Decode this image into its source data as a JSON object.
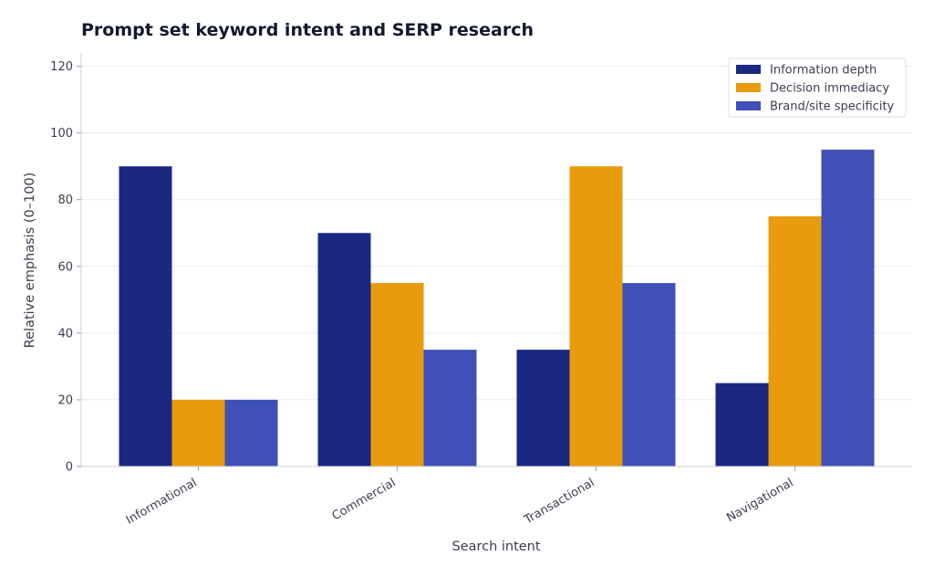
{
  "chart_data": {
    "type": "bar",
    "title": "Prompt set keyword intent and SERP research",
    "xlabel": "Search intent",
    "ylabel": "Relative emphasis (0–100)",
    "categories": [
      "Informational",
      "Commercial",
      "Transactional",
      "Navigational"
    ],
    "series": [
      {
        "name": "Information depth",
        "color": "#1a2882",
        "values": [
          90,
          70,
          35,
          25
        ]
      },
      {
        "name": "Decision immediacy",
        "color": "#e89b0c",
        "values": [
          20,
          55,
          90,
          75
        ]
      },
      {
        "name": "Brand/site specificity",
        "color": "#3f51b8",
        "values": [
          20,
          35,
          55,
          95
        ]
      }
    ],
    "ylim": [
      0,
      124
    ],
    "yticks": [
      0,
      20,
      40,
      60,
      80,
      100,
      120
    ],
    "grid": true,
    "legend_position": "top-right"
  }
}
